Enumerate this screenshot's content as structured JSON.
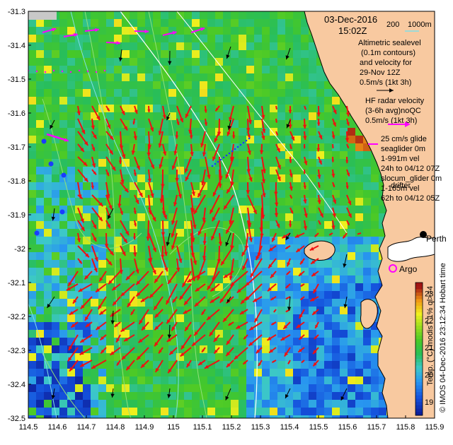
{
  "map": {
    "date": "03-Dec-2016",
    "time": "15:02Z",
    "bathy_labels": [
      "200",
      "1000m"
    ],
    "legend": {
      "altimetry": [
        "Altimetric sealevel",
        "(0.1m contours)",
        "and velocity for",
        "29-Nov 12Z",
        "0.5m/s (1kt 3h)"
      ],
      "hf_radar": [
        "HF radar velocity",
        "(3-6h avg)noQC",
        "0.5m/s (1kt 3h)"
      ],
      "glider_scale": "25 cm/s glide",
      "seaglider": [
        "seaglider 0m",
        "1-991m vel",
        "24h to 04/12 07Z"
      ],
      "slocum": [
        "slocum_glider 0m",
        "1-165m vel",
        "62h to 04/12 05Z"
      ],
      "drifter": "drifter"
    },
    "places": {
      "perth": "Perth",
      "argo": "Argo"
    },
    "colorbar": {
      "ticks": [
        "23",
        "22",
        "21",
        "20",
        "19"
      ],
      "label": "Temp. (°C) modisT 1% ql>=4"
    },
    "credit": "© IMOS 04-Dec-2016 23:12:34 Hobart time",
    "axes": {
      "x_ticks": [
        "114.5",
        "114.6",
        "114.7",
        "114.8",
        "114.9",
        "115",
        "115.1",
        "115.2",
        "115.3",
        "115.4",
        "115.5",
        "115.6",
        "115.7",
        "115.8",
        "115.9"
      ],
      "y_ticks": [
        "-31.3",
        "-31.4",
        "-31.5",
        "-31.6",
        "-31.7",
        "-31.8",
        "-31.9",
        "-32",
        "-32.1",
        "-32.2",
        "-32.3",
        "-32.4",
        "-32.5"
      ],
      "x_range": [
        114.5,
        115.9
      ],
      "y_range": [
        -32.5,
        -31.3
      ]
    },
    "colors": {
      "land": "#f8c9a0",
      "hf_arrow": "#ee1111",
      "glider": "#ff00ff",
      "altimetry_arrow": "#000000",
      "bathy": "#7fe0e8"
    }
  }
}
